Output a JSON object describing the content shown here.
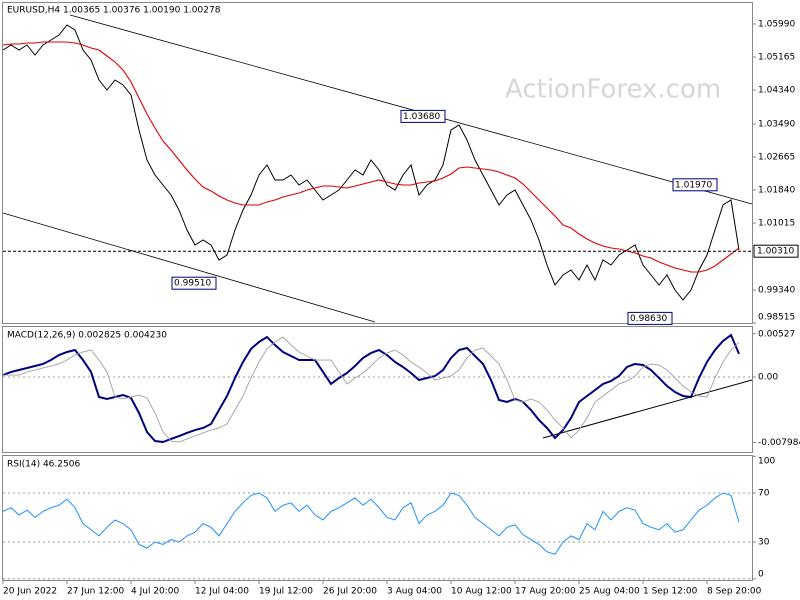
{
  "chart_data": [
    {
      "type": "line",
      "title": "EURUSD,H4  1.00365 1.00376 1.00190 1.00278",
      "watermark": "ActionForex.com",
      "categories": [
        "20 Jun 2022",
        null,
        null,
        null,
        null,
        null,
        null,
        null,
        "27 Jun 12:00",
        null,
        null,
        null,
        null,
        null,
        null,
        null,
        "4 Jul 20:00",
        null,
        null,
        null,
        null,
        null,
        null,
        null,
        "12 Jul 04:00",
        null,
        null,
        null,
        null,
        null,
        null,
        null,
        "19 Jul 12:00",
        null,
        null,
        null,
        null,
        null,
        null,
        null,
        "26 Jul 20:00",
        null,
        null,
        null,
        null,
        null,
        null,
        null,
        "3 Aug 04:00",
        null,
        null,
        null,
        null,
        null,
        null,
        null,
        "10 Aug 12:00",
        null,
        null,
        null,
        null,
        null,
        null,
        null,
        "17 Aug 20:00",
        null,
        null,
        null,
        null,
        null,
        null,
        null,
        "25 Aug 04:00",
        null,
        null,
        null,
        null,
        null,
        null,
        null,
        "1 Sep 12:00",
        null,
        null,
        null,
        null,
        null,
        null,
        null,
        "8 Sep 20:00",
        null,
        null,
        null,
        null
      ],
      "series": [
        {
          "color": "#000000",
          "values": [
            1.0534,
            1.05465,
            1.0534,
            1.05465,
            1.05215,
            1.05465,
            1.0559,
            1.05715,
            1.05965,
            1.0584,
            1.0534,
            1.0509,
            1.0459,
            1.0434,
            1.0459,
            1.04465,
            1.04215,
            1.0334,
            1.0259,
            1.02215,
            1.01965,
            1.01715,
            1.0134,
            1.0084,
            1.00465,
            1.0059,
            1.00465,
            1.0009,
            1.00215,
            1.0084,
            1.0134,
            1.01715,
            1.02215,
            1.02465,
            1.0209,
            1.0209,
            1.02215,
            1.01965,
            1.0209,
            1.0184,
            1.0159,
            1.01715,
            1.0184,
            1.0209,
            1.0234,
            1.02215,
            1.0259,
            1.0234,
            1.01965,
            1.0184,
            1.02215,
            1.02465,
            1.01715,
            1.01965,
            1.0209,
            1.02465,
            1.0334,
            1.03465,
            1.0309,
            1.0259,
            1.02215,
            1.0184,
            1.01465,
            1.01715,
            1.0184,
            1.01465,
            1.0109,
            1.0059,
            0.99965,
            0.99465,
            0.99715,
            0.9984,
            0.9959,
            0.99965,
            0.9959,
            1.0009,
            0.99965,
            1.00215,
            1.0034,
            1.00465,
            0.99965,
            0.99715,
            0.99465,
            0.99715,
            0.9934,
            0.9909,
            0.9934,
            0.9984,
            1.00215,
            1.0084,
            1.01465,
            1.0159,
            1.0034
          ]
        },
        {
          "color": "#e00000",
          "values": [
            1.05465,
            1.0549,
            1.0549,
            1.05515,
            1.05515,
            1.0554,
            1.0554,
            1.0554,
            1.0554,
            1.05515,
            1.05465,
            1.0539,
            1.0534,
            1.0519,
            1.0504,
            1.0484,
            1.0454,
            1.0414,
            1.0374,
            1.0339,
            1.03065,
            1.0284,
            1.0259,
            1.0234,
            1.02115,
            1.01915,
            1.01815,
            1.0169,
            1.0159,
            1.01515,
            1.01465,
            1.01465,
            1.01465,
            1.0154,
            1.0159,
            1.01665,
            1.01715,
            1.01765,
            1.0184,
            1.0189,
            1.0194,
            1.0194,
            1.01915,
            1.0189,
            1.0194,
            1.0199,
            1.0204,
            1.0209,
            1.0204,
            1.0199,
            1.01965,
            1.01965,
            1.02015,
            1.0204,
            1.02065,
            1.0214,
            1.0224,
            1.0239,
            1.02415,
            1.0239,
            1.02365,
            1.0234,
            1.0229,
            1.02215,
            1.0214,
            1.0199,
            1.0179,
            1.0159,
            1.0139,
            1.0119,
            1.00965,
            1.0089,
            1.0074,
            1.00615,
            1.00515,
            1.0044,
            1.0039,
            1.00365,
            1.00315,
            1.00265,
            1.0019,
            1.0014,
            1.0004,
            0.99965,
            0.9989,
            0.9984,
            0.9979,
            0.9979,
            0.9984,
            0.9994,
            1.0009,
            1.0024,
            1.0039
          ]
        }
      ],
      "ylim": [
        0.98515,
        1.06515
      ],
      "yticks": [
        {
          "value": 1.0599,
          "label": "1.05990"
        },
        1.05165,
        {
          "value": 1.0434,
          "label": "1.04340"
        },
        {
          "value": 1.0349,
          "label": "1.03490"
        },
        1.02665,
        {
          "value": 1.0184,
          "label": "1.01840"
        },
        1.01015,
        {
          "value": 0.9934,
          "label": "0.99340"
        },
        0.98515
      ],
      "annotations": [
        {
          "value": 1.0368,
          "label": "1.03680"
        },
        {
          "value": 1.0197,
          "label": "1.01970"
        },
        {
          "value": 0.9951,
          "label": "0.99510"
        },
        {
          "value": 0.9863,
          "label": "0.98630"
        }
      ],
      "current_price": {
        "value": 1.0031,
        "label": "1.00310"
      }
    },
    {
      "type": "line",
      "title": "MACD(12,26,9) 0.002825 0.004230",
      "series": [
        {
          "color": "#000080",
          "values": [
            0.00024,
            0.00061,
            0.00085,
            0.0011,
            0.00134,
            0.00159,
            0.00207,
            0.00268,
            0.00305,
            0.00329,
            0.00207,
            0.00061,
            -0.00244,
            -0.00268,
            -0.00244,
            -0.0022,
            -0.00256,
            -0.00439,
            -0.00671,
            -0.00781,
            -0.00793,
            -0.00756,
            -0.0072,
            -0.00683,
            -0.00647,
            -0.00622,
            -0.00573,
            -0.00403,
            -0.00232,
            -0.00012,
            0.00183,
            0.00342,
            0.00427,
            0.00488,
            0.0039,
            0.00305,
            0.00256,
            0.00207,
            0.00207,
            0.00207,
            0.00061,
            -0.00085,
            -0.00012,
            0.00049,
            0.00134,
            0.00232,
            0.00293,
            0.00329,
            0.00268,
            0.00183,
            0.00122,
            0.00049,
            -0.00037,
            -0.00012,
            0.00012,
            0.00085,
            0.00232,
            0.00329,
            0.00354,
            0.00256,
            0.00159,
            -0.00037,
            -0.00281,
            -0.00305,
            -0.00268,
            -0.00305,
            -0.00403,
            -0.00525,
            -0.00622,
            -0.00744,
            -0.00647,
            -0.005,
            -0.00305,
            -0.00232,
            -0.00159,
            -0.00085,
            -0.00049,
            0.00012,
            0.00122,
            0.00159,
            0.00146,
            0.00085,
            -0.00012,
            -0.0011,
            -0.00183,
            -0.00232,
            -0.00244,
            -0.00012,
            0.00183,
            0.00329,
            0.00439,
            0.00512,
            0.002825
          ]
        },
        {
          "color": "#a0a0a0",
          "values": [
            0.00024,
            0.00024,
            0.00024,
            0.00061,
            0.00085,
            0.0011,
            0.00134,
            0.00159,
            0.00207,
            0.00268,
            0.00305,
            0.00329,
            0.00207,
            0.00061,
            -0.00244,
            -0.00268,
            -0.00244,
            -0.0022,
            -0.00256,
            -0.00439,
            -0.00671,
            -0.00781,
            -0.00793,
            -0.00756,
            -0.0072,
            -0.00683,
            -0.00647,
            -0.00622,
            -0.00573,
            -0.00403,
            -0.00232,
            -0.00012,
            0.00183,
            0.00342,
            0.00427,
            0.00488,
            0.0039,
            0.00305,
            0.00256,
            0.00207,
            0.00207,
            0.00207,
            0.00061,
            -0.00085,
            -0.00012,
            0.00049,
            0.00134,
            0.00232,
            0.00293,
            0.00329,
            0.00268,
            0.00183,
            0.00122,
            0.00049,
            -0.00037,
            -0.00012,
            0.00012,
            0.00085,
            0.00232,
            0.00329,
            0.00354,
            0.00256,
            0.00159,
            -0.00037,
            -0.00281,
            -0.00305,
            -0.00268,
            -0.00305,
            -0.00403,
            -0.00525,
            -0.00622,
            -0.00744,
            -0.00647,
            -0.005,
            -0.00305,
            -0.00232,
            -0.00159,
            -0.00085,
            -0.00049,
            0.00012,
            0.00122,
            0.00159,
            0.00146,
            0.00085,
            -0.00012,
            -0.0011,
            -0.00183,
            -0.00232,
            -0.00244,
            -0.00012,
            0.00183,
            0.00329,
            0.00423
          ]
        }
      ],
      "ylim": [
        -0.00915,
        0.00622
      ],
      "yticks": [
        0.00527,
        {
          "value": 0,
          "label": "0.00"
        },
        -0.007984
      ]
    },
    {
      "type": "line",
      "title": "RSI(14) 46.2506",
      "series": [
        {
          "color": "#1e90ff",
          "values": [
            55,
            58,
            52,
            56,
            50,
            55,
            58,
            60,
            65,
            58,
            45,
            40,
            35,
            42,
            48,
            45,
            40,
            28,
            25,
            30,
            28,
            32,
            30,
            35,
            38,
            45,
            42,
            35,
            45,
            55,
            62,
            68,
            70,
            66,
            55,
            60,
            62,
            55,
            60,
            52,
            48,
            55,
            58,
            62,
            66,
            60,
            65,
            58,
            50,
            48,
            58,
            62,
            45,
            52,
            55,
            60,
            70,
            68,
            60,
            50,
            45,
            40,
            35,
            42,
            44,
            36,
            32,
            28,
            22,
            20,
            30,
            35,
            32,
            45,
            40,
            55,
            48,
            55,
            58,
            56,
            45,
            42,
            40,
            45,
            38,
            40,
            48,
            56,
            60,
            66,
            70,
            68,
            46.25
          ]
        }
      ],
      "ylim": [
        -1,
        101
      ],
      "yticks": [
        0,
        30,
        70,
        100
      ]
    }
  ]
}
